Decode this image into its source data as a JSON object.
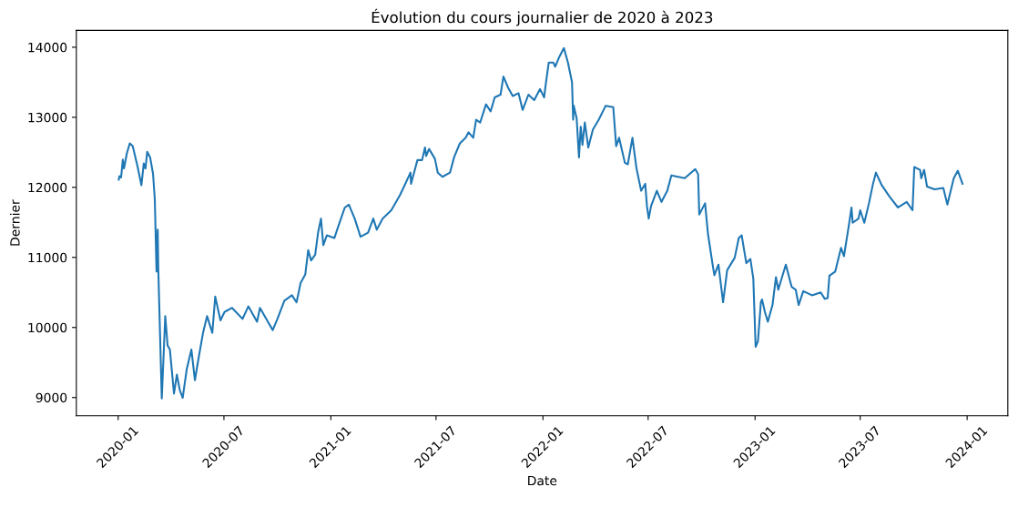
{
  "chart_data": {
    "type": "line",
    "title": "Évolution du cours journalier de 2020 à 2023",
    "xlabel": "Date",
    "ylabel": "Dernier",
    "xlim": [
      "2019-10-21",
      "2024-03-11"
    ],
    "ylim": [
      8740,
      14240
    ],
    "xticks": [
      {
        "value": "2020-01-01",
        "label": "2020-01"
      },
      {
        "value": "2020-07-01",
        "label": "2020-07"
      },
      {
        "value": "2021-01-01",
        "label": "2021-01"
      },
      {
        "value": "2021-07-01",
        "label": "2021-07"
      },
      {
        "value": "2022-01-01",
        "label": "2022-01"
      },
      {
        "value": "2022-07-01",
        "label": "2022-07"
      },
      {
        "value": "2023-01-01",
        "label": "2023-01"
      },
      {
        "value": "2023-07-01",
        "label": "2023-07"
      },
      {
        "value": "2024-01-01",
        "label": "2024-01"
      }
    ],
    "yticks": [
      9000,
      10000,
      11000,
      12000,
      13000,
      14000
    ],
    "grid": false,
    "marker": "none",
    "line_style": "solid",
    "x": [
      "2020-01-02",
      "2020-01-03",
      "2020-01-06",
      "2020-01-09",
      "2020-01-11",
      "2020-01-16",
      "2020-01-21",
      "2020-01-26",
      "2020-02-03",
      "2020-02-10",
      "2020-02-14",
      "2020-02-17",
      "2020-02-20",
      "2020-02-25",
      "2020-03-01",
      "2020-03-04",
      "2020-03-07",
      "2020-03-09",
      "2020-03-10",
      "2020-03-16",
      "2020-03-22",
      "2020-03-26",
      "2020-03-30",
      "2020-04-06",
      "2020-04-11",
      "2020-04-16",
      "2020-04-21",
      "2020-04-28",
      "2020-05-06",
      "2020-05-12",
      "2020-05-18",
      "2020-05-26",
      "2020-06-02",
      "2020-06-11",
      "2020-06-16",
      "2020-06-25",
      "2020-07-02",
      "2020-07-15",
      "2020-08-02",
      "2020-08-12",
      "2020-08-27",
      "2020-09-01",
      "2020-09-16",
      "2020-09-23",
      "2020-10-01",
      "2020-10-13",
      "2020-10-26",
      "2020-11-03",
      "2020-11-10",
      "2020-11-18",
      "2020-11-23",
      "2020-11-28",
      "2020-12-05",
      "2020-12-10",
      "2020-12-15",
      "2020-12-19",
      "2020-12-25",
      "2021-01-07",
      "2021-01-15",
      "2021-01-25",
      "2021-02-01",
      "2021-02-11",
      "2021-02-21",
      "2021-03-06",
      "2021-03-15",
      "2021-03-21",
      "2021-03-31",
      "2021-04-15",
      "2021-04-30",
      "2021-05-08",
      "2021-05-18",
      "2021-05-19",
      "2021-05-30",
      "2021-06-07",
      "2021-06-12",
      "2021-06-14",
      "2021-06-19",
      "2021-06-29",
      "2021-07-04",
      "2021-07-12",
      "2021-07-25",
      "2021-08-01",
      "2021-08-11",
      "2021-08-21",
      "2021-08-26",
      "2021-09-03",
      "2021-09-08",
      "2021-09-15",
      "2021-09-25",
      "2021-10-03",
      "2021-10-10",
      "2021-10-20",
      "2021-10-25",
      "2021-11-02",
      "2021-11-10",
      "2021-11-20",
      "2021-11-27",
      "2021-12-07",
      "2021-12-17",
      "2021-12-27",
      "2022-01-03",
      "2022-01-06",
      "2022-01-11",
      "2022-01-19",
      "2022-01-22",
      "2022-01-29",
      "2022-02-06",
      "2022-02-13",
      "2022-02-20",
      "2022-02-22",
      "2022-02-23",
      "2022-02-28",
      "2022-03-04",
      "2022-03-07",
      "2022-03-10",
      "2022-03-14",
      "2022-03-20",
      "2022-03-28",
      "2022-04-07",
      "2022-04-19",
      "2022-05-02",
      "2022-05-07",
      "2022-05-12",
      "2022-05-22",
      "2022-05-27",
      "2022-06-04",
      "2022-06-11",
      "2022-06-19",
      "2022-06-26",
      "2022-06-29",
      "2022-07-02",
      "2022-07-06",
      "2022-07-16",
      "2022-07-24",
      "2022-08-03",
      "2022-08-10",
      "2022-09-02",
      "2022-09-20",
      "2022-09-25",
      "2022-09-27",
      "2022-10-07",
      "2022-10-12",
      "2022-10-20",
      "2022-10-23",
      "2022-10-30",
      "2022-11-07",
      "2022-11-14",
      "2022-11-27",
      "2022-12-04",
      "2022-12-09",
      "2022-12-17",
      "2022-12-24",
      "2022-12-29",
      "2023-01-02",
      "2023-01-06",
      "2023-01-11",
      "2023-01-13",
      "2023-01-18",
      "2023-01-23",
      "2023-01-31",
      "2023-02-06",
      "2023-02-10",
      "2023-02-15",
      "2023-02-23",
      "2023-03-05",
      "2023-03-12",
      "2023-03-17",
      "2023-03-25",
      "2023-04-09",
      "2023-04-24",
      "2023-05-01",
      "2023-05-06",
      "2023-05-09",
      "2023-05-19",
      "2023-05-29",
      "2023-06-03",
      "2023-06-11",
      "2023-06-16",
      "2023-06-18",
      "2023-06-28",
      "2023-07-01",
      "2023-07-08",
      "2023-07-16",
      "2023-07-23",
      "2023-07-28",
      "2023-08-07",
      "2023-08-20",
      "2023-09-04",
      "2023-09-19",
      "2023-09-29",
      "2023-10-02",
      "2023-10-12",
      "2023-10-14",
      "2023-10-19",
      "2023-10-24",
      "2023-11-06",
      "2023-11-21",
      "2023-11-28",
      "2023-12-09",
      "2023-12-16",
      "2023-12-24"
    ],
    "series": [
      {
        "color": "#1f77b4",
        "values": [
          12111,
          12159,
          12142,
          12397,
          12270,
          12488,
          12628,
          12588,
          12309,
          12031,
          12341,
          12270,
          12508,
          12428,
          12190,
          11832,
          10798,
          11395,
          10838,
          8988,
          10161,
          9744,
          9684,
          9056,
          9326,
          9107,
          8996,
          9406,
          9684,
          9247,
          9545,
          9923,
          10161,
          9923,
          10440,
          10101,
          10221,
          10280,
          10122,
          10301,
          10082,
          10280,
          10062,
          9963,
          10122,
          10381,
          10459,
          10360,
          10638,
          10758,
          11104,
          10957,
          11037,
          11354,
          11554,
          11175,
          11315,
          11276,
          11474,
          11712,
          11753,
          11554,
          11295,
          11354,
          11554,
          11395,
          11554,
          11673,
          11891,
          12031,
          12210,
          12051,
          12389,
          12389,
          12568,
          12449,
          12548,
          12409,
          12210,
          12150,
          12210,
          12428,
          12628,
          12708,
          12786,
          12708,
          12965,
          12926,
          13185,
          13085,
          13284,
          13323,
          13582,
          13424,
          13304,
          13344,
          13105,
          13323,
          13245,
          13403,
          13284,
          13483,
          13782,
          13782,
          13722,
          13860,
          13988,
          13782,
          13502,
          12965,
          13165,
          12986,
          12428,
          12866,
          12607,
          12926,
          12568,
          12827,
          12965,
          13165,
          13144,
          12588,
          12708,
          12350,
          12329,
          12708,
          12270,
          11951,
          12051,
          11733,
          11554,
          11733,
          11951,
          11792,
          11951,
          12171,
          12130,
          12261,
          12190,
          11613,
          11772,
          11335,
          10897,
          10746,
          10897,
          10360,
          10817,
          10996,
          11276,
          11315,
          10918,
          10977,
          10698,
          9724,
          9803,
          10360,
          10400,
          10221,
          10082,
          10321,
          10718,
          10539,
          10679,
          10897,
          10579,
          10539,
          10321,
          10519,
          10459,
          10500,
          10408,
          10420,
          10739,
          10798,
          11136,
          11017,
          11434,
          11712,
          11494,
          11554,
          11673,
          11494,
          11772,
          12051,
          12210,
          12031,
          11872,
          11712,
          11792,
          11673,
          12290,
          12249,
          12130,
          12249,
          12011,
          11971,
          11992,
          11753,
          12130,
          12237,
          12051
        ]
      }
    ]
  }
}
